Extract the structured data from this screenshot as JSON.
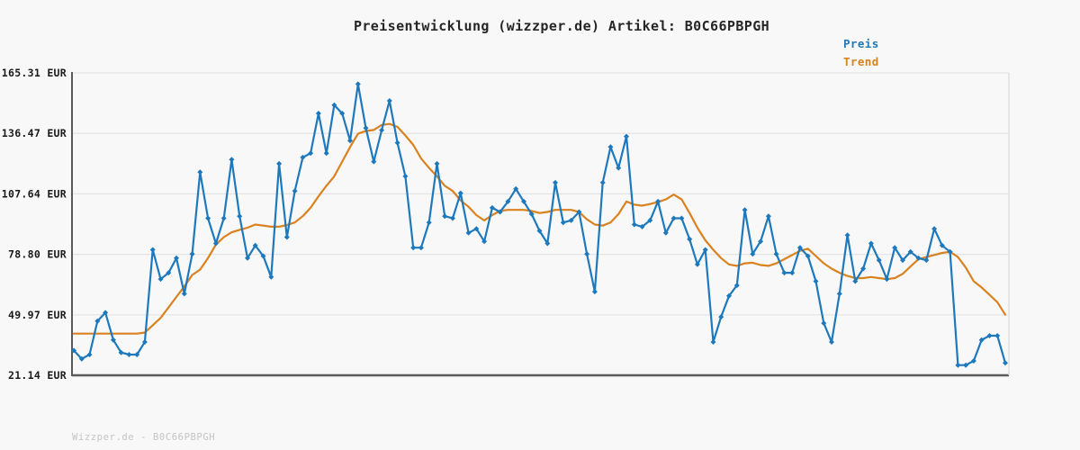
{
  "title": "Preisentwicklung (wizzper.de) Artikel: B0C66PBPGH",
  "footer": "Wizzper.de - B0C66PBPGH",
  "legend": {
    "preis": "Preis",
    "trend": "Trend"
  },
  "colors": {
    "price": "#1e79bc",
    "trend": "#d9821f",
    "grid": "#e4e4e4",
    "axis_dark": "#5a5a5a",
    "border_light": "#d9d9d9",
    "tick_text": "#1a1a1a",
    "title_text": "#262626",
    "footer_text": "#c4c4c4",
    "background": "#f8f8f8"
  },
  "y_axis": {
    "tick_labels": [
      "165.31 EUR",
      "136.47 EUR",
      "107.64 EUR",
      "78.80 EUR",
      "49.97 EUR",
      "21.14 EUR"
    ],
    "tick_values": [
      165.31,
      136.47,
      107.64,
      78.8,
      49.97,
      21.14
    ]
  },
  "chart_data": {
    "type": "line",
    "title": "Preisentwicklung (wizzper.de) Artikel: B0C66PBPGH",
    "xlabel": "",
    "ylabel": "EUR",
    "ylim": [
      21.14,
      165.31
    ],
    "x_tick_labels": [],
    "grid": "horizontal",
    "legend_position": "top-right",
    "series": [
      {
        "name": "Preis",
        "color": "#1e79bc",
        "marker": "diamond",
        "values": [
          33,
          29,
          31,
          47,
          51,
          38,
          32,
          31,
          31,
          37,
          81,
          67,
          70,
          77,
          60,
          79,
          118,
          96,
          84,
          96,
          124,
          97,
          77,
          83,
          78,
          68,
          122,
          87,
          109,
          125,
          127,
          146,
          127,
          150,
          146,
          133,
          160,
          139,
          123,
          138,
          152,
          132,
          116,
          82,
          82,
          94,
          122,
          97,
          96,
          108,
          89,
          91,
          85,
          101,
          99,
          104,
          110,
          104,
          98,
          90,
          84,
          113,
          94,
          95,
          99,
          79,
          61,
          113,
          130,
          120,
          135,
          93,
          92,
          95,
          104,
          89,
          96,
          96,
          86,
          74,
          81,
          37,
          49,
          59,
          64,
          100,
          79,
          85,
          97,
          79,
          70,
          70,
          82,
          78,
          66,
          46,
          37,
          60,
          88,
          66,
          72,
          84,
          76,
          67,
          82,
          76,
          80,
          77,
          76,
          91,
          83,
          80,
          26,
          26,
          28,
          38,
          40,
          40,
          27
        ]
      },
      {
        "name": "Trend",
        "color": "#d9821f",
        "marker": "none",
        "values": [
          41,
          41,
          41,
          41,
          41,
          41,
          41,
          41,
          41,
          41.5,
          45,
          48.5,
          53.5,
          58.5,
          63.5,
          69,
          71.5,
          77,
          83.5,
          87,
          89.3,
          90.5,
          91.5,
          93,
          92.5,
          92,
          92,
          92.8,
          94,
          97,
          101,
          106.5,
          111.5,
          116,
          123,
          130,
          136.3,
          137.6,
          138.1,
          140.5,
          141,
          139.6,
          135.5,
          131,
          124.5,
          120,
          116,
          111.5,
          109,
          104.5,
          101.5,
          97.5,
          95,
          97.5,
          99.5,
          100,
          100,
          100,
          99.5,
          98.5,
          99,
          100,
          100,
          100,
          99,
          95.5,
          93,
          92.5,
          94,
          98,
          104,
          102.5,
          102,
          102.8,
          103.8,
          105,
          107.3,
          105,
          98.5,
          91.5,
          85.5,
          81,
          77,
          74,
          73.3,
          74.5,
          74.8,
          73.7,
          73.3,
          74.5,
          76.5,
          78.5,
          80.5,
          81.5,
          78,
          74.5,
          72,
          70,
          68.5,
          67.5,
          67.5,
          68,
          67.5,
          67,
          67.5,
          69.5,
          73,
          76.5,
          77.5,
          78.5,
          79.5,
          80,
          77.5,
          72.5,
          66,
          63,
          59.5,
          56,
          50
        ]
      }
    ]
  }
}
